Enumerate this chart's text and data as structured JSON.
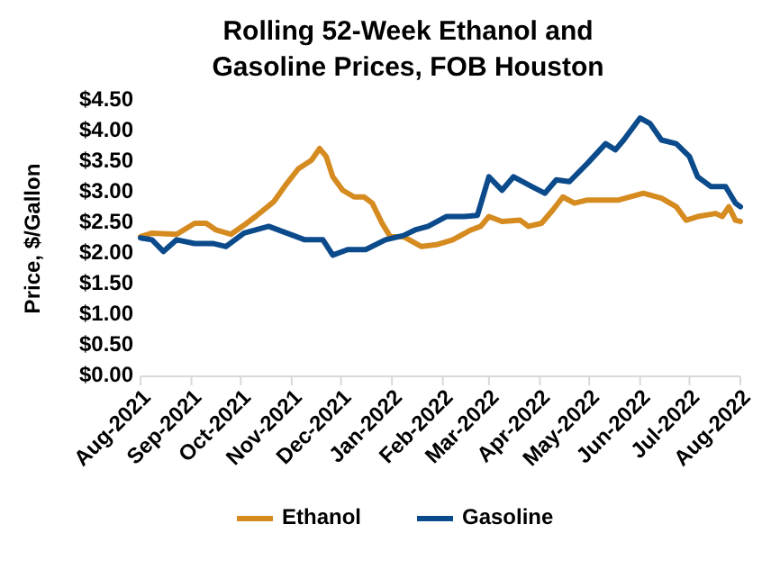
{
  "chart_data": {
    "type": "line",
    "title": "Rolling 52-Week Ethanol and Gasoline Prices, FOB Houston",
    "ylabel": "Price, $/Gallon",
    "xlim": [
      "2021-08-01",
      "2022-08-01"
    ],
    "xticks": [
      {
        "value": "2021-08-01",
        "label": "Aug-2021"
      },
      {
        "value": "2021-09-01",
        "label": "Sep-2021"
      },
      {
        "value": "2021-10-01",
        "label": "Oct-2021"
      },
      {
        "value": "2021-11-01",
        "label": "Nov-2021"
      },
      {
        "value": "2021-12-01",
        "label": "Dec-2021"
      },
      {
        "value": "2022-01-01",
        "label": "Jan-2022"
      },
      {
        "value": "2022-02-01",
        "label": "Feb-2022"
      },
      {
        "value": "2022-03-01",
        "label": "Mar-2022"
      },
      {
        "value": "2022-04-01",
        "label": "Apr-2022"
      },
      {
        "value": "2022-05-01",
        "label": "May-2022"
      },
      {
        "value": "2022-06-01",
        "label": "Jun-2022"
      },
      {
        "value": "2022-07-01",
        "label": "Jul-2022"
      },
      {
        "value": "2022-08-01",
        "label": "Aug-2022"
      }
    ],
    "ylim": [
      0,
      4.5
    ],
    "yticks": [
      {
        "value": 0,
        "label": "$0.00"
      },
      {
        "value": 0.5,
        "label": "$0.50"
      },
      {
        "value": 1,
        "label": "$1.00"
      },
      {
        "value": 1.5,
        "label": "$1.50"
      },
      {
        "value": 2,
        "label": "$2.00"
      },
      {
        "value": 2.5,
        "label": "$2.50"
      },
      {
        "value": 3,
        "label": "$3.00"
      },
      {
        "value": 3.5,
        "label": "$3.50"
      },
      {
        "value": 4,
        "label": "$4.00"
      },
      {
        "value": 4.5,
        "label": "$4.50"
      }
    ],
    "grid": false,
    "legend": "bottom",
    "marker": "none",
    "line_style": "solid",
    "series": [
      {
        "name": "Ethanol",
        "color": "#d58b1f",
        "x": [
          "2021-08-01",
          "2021-08-08",
          "2021-08-23",
          "2021-09-03",
          "2021-09-10",
          "2021-09-16",
          "2021-09-25",
          "2021-10-03",
          "2021-10-10",
          "2021-10-21",
          "2021-10-29",
          "2021-11-05",
          "2021-11-13",
          "2021-11-18",
          "2021-11-22",
          "2021-11-26",
          "2021-12-02",
          "2021-12-09",
          "2021-12-15",
          "2021-12-20",
          "2021-12-26",
          "2021-12-31",
          "2022-01-08",
          "2022-01-19",
          "2022-01-28",
          "2022-02-07",
          "2022-02-18",
          "2022-02-24",
          "2022-03-01",
          "2022-03-09",
          "2022-03-20",
          "2022-03-25",
          "2022-04-02",
          "2022-04-09",
          "2022-04-15",
          "2022-04-22",
          "2022-04-30",
          "2022-05-19",
          "2022-06-03",
          "2022-06-14",
          "2022-06-23",
          "2022-06-29",
          "2022-07-06",
          "2022-07-17",
          "2022-07-21",
          "2022-07-25",
          "2022-07-29",
          "2022-08-01"
        ],
        "values": [
          2.28,
          2.34,
          2.32,
          2.5,
          2.5,
          2.39,
          2.32,
          2.47,
          2.61,
          2.85,
          3.15,
          3.39,
          3.53,
          3.72,
          3.59,
          3.26,
          3.04,
          2.93,
          2.93,
          2.83,
          2.5,
          2.28,
          2.28,
          2.12,
          2.15,
          2.23,
          2.39,
          2.45,
          2.61,
          2.53,
          2.55,
          2.45,
          2.5,
          2.72,
          2.93,
          2.83,
          2.88,
          2.88,
          2.99,
          2.91,
          2.77,
          2.55,
          2.61,
          2.66,
          2.61,
          2.77,
          2.55,
          2.53
        ]
      },
      {
        "name": "Gasoline",
        "color": "#0b4a8b",
        "x": [
          "2021-08-01",
          "2021-08-08",
          "2021-08-15",
          "2021-08-23",
          "2021-09-03",
          "2021-09-14",
          "2021-09-22",
          "2021-10-03",
          "2021-10-18",
          "2021-10-29",
          "2021-11-09",
          "2021-11-20",
          "2021-11-26",
          "2021-12-05",
          "2021-12-16",
          "2021-12-28",
          "2022-01-08",
          "2022-01-15",
          "2022-01-23",
          "2022-02-03",
          "2022-02-14",
          "2022-02-22",
          "2022-03-01",
          "2022-03-09",
          "2022-03-16",
          "2022-03-27",
          "2022-04-04",
          "2022-04-11",
          "2022-04-19",
          "2022-04-30",
          "2022-05-11",
          "2022-05-17",
          "2022-05-22",
          "2022-06-01",
          "2022-06-07",
          "2022-06-14",
          "2022-06-23",
          "2022-07-01",
          "2022-07-06",
          "2022-07-14",
          "2022-07-23",
          "2022-07-29",
          "2022-08-01"
        ],
        "values": [
          2.26,
          2.23,
          2.04,
          2.23,
          2.17,
          2.17,
          2.12,
          2.34,
          2.45,
          2.34,
          2.23,
          2.23,
          1.98,
          2.07,
          2.07,
          2.23,
          2.3,
          2.39,
          2.45,
          2.61,
          2.61,
          2.63,
          3.26,
          3.04,
          3.26,
          3.1,
          2.99,
          3.21,
          3.18,
          3.48,
          3.8,
          3.7,
          3.86,
          4.22,
          4.13,
          3.86,
          3.8,
          3.59,
          3.26,
          3.1,
          3.1,
          2.83,
          2.77
        ]
      }
    ]
  }
}
